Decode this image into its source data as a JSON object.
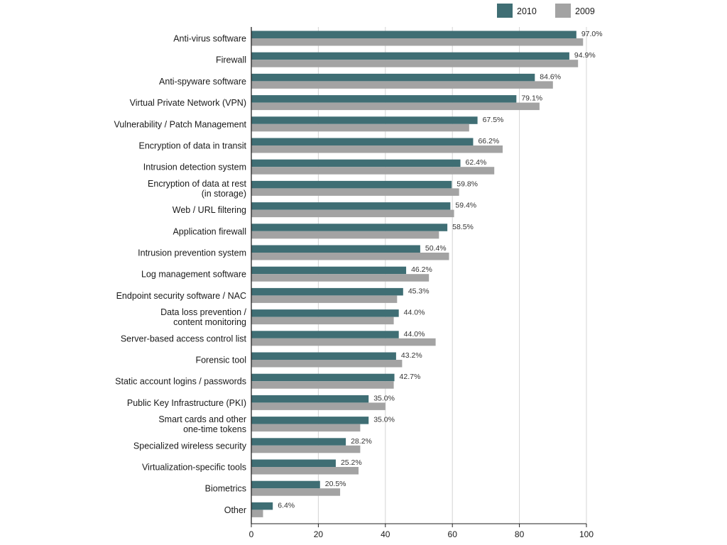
{
  "chart_data": {
    "type": "bar",
    "orientation": "horizontal",
    "categories": [
      "Anti-virus software",
      "Firewall",
      "Anti-spyware software",
      "Virtual Private Network (VPN)",
      "Vulnerability / Patch Management",
      "Encryption of data in transit",
      "Intrusion detection system",
      "Encryption of data at rest\n(in storage)",
      "Web / URL filtering",
      "Application firewall",
      "Intrusion prevention system",
      "Log management software",
      "Endpoint security software / NAC",
      "Data loss prevention /\ncontent monitoring",
      "Server-based access control list",
      "Forensic tool",
      "Static account logins / passwords",
      "Public Key Infrastructure (PKI)",
      "Smart cards and other\none-time tokens",
      "Specialized wireless security",
      "Virtualization-specific tools",
      "Biometrics",
      "Other"
    ],
    "series": [
      {
        "name": "2010",
        "color": "#3f6e74",
        "values": [
          97.0,
          94.9,
          84.6,
          79.1,
          67.5,
          66.2,
          62.4,
          59.8,
          59.4,
          58.5,
          50.4,
          46.2,
          45.3,
          44.0,
          44.0,
          43.2,
          42.7,
          35.0,
          35.0,
          28.2,
          25.2,
          20.5,
          6.4
        ],
        "value_labels": [
          "97.0%",
          "94.9%",
          "84.6%",
          "79.1%",
          "67.5%",
          "66.2%",
          "62.4%",
          "59.8%",
          "59.4%",
          "58.5%",
          "50.4%",
          "46.2%",
          "45.3%",
          "44.0%",
          "44.0%",
          "43.2%",
          "42.7%",
          "35.0%",
          "35.0%",
          "28.2%",
          "25.2%",
          "20.5%",
          "6.4%"
        ]
      },
      {
        "name": "2009",
        "color": "#a3a3a3",
        "values": [
          99.0,
          97.5,
          90.0,
          86.0,
          65.0,
          75.0,
          72.5,
          62.0,
          60.5,
          56.0,
          59.0,
          53.0,
          43.5,
          42.5,
          55.0,
          45.0,
          42.5,
          40.0,
          32.5,
          32.5,
          32.0,
          26.5,
          3.5
        ]
      }
    ],
    "xlim": [
      0,
      100
    ],
    "x_ticks": [
      0,
      20,
      40,
      60,
      80,
      100
    ],
    "grid": "vertical",
    "legend": "top-right",
    "title": "",
    "xlabel": "",
    "ylabel": ""
  }
}
